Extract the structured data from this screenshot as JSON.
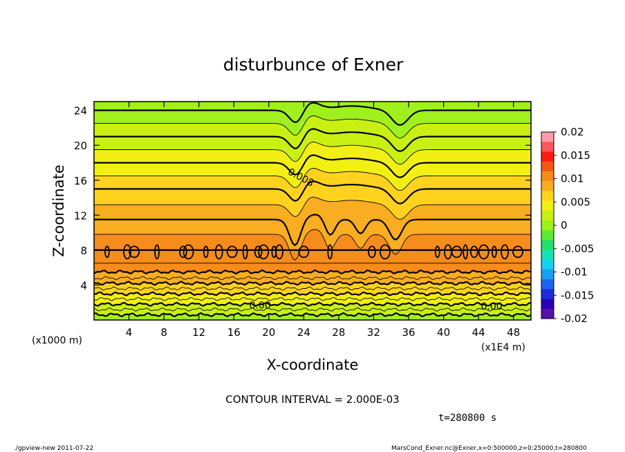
{
  "chart_data": {
    "type": "heatmap",
    "title": "disturbunce of Exner",
    "xlabel": "X-coordinate",
    "ylabel": "Z-coordinate",
    "x_unit_left": "(x1000 m)",
    "x_unit_right": "(x1E4 m)",
    "xlim": [
      0,
      50
    ],
    "ylim": [
      0,
      25
    ],
    "xticks": [
      4,
      8,
      12,
      16,
      20,
      24,
      28,
      32,
      36,
      40,
      44,
      48
    ],
    "yticks": [
      4,
      8,
      12,
      16,
      20,
      24
    ],
    "colorbar": {
      "min": -0.02,
      "max": 0.02,
      "labels": [
        "0.02",
        "0.015",
        "0.01",
        "0.005",
        "0",
        "-0.005",
        "-0.01",
        "-0.015",
        "-0.02"
      ],
      "colors": [
        "#ff9aa6",
        "#ff5560",
        "#ff1c10",
        "#f05a12",
        "#f58c1c",
        "#f9ad20",
        "#ffd21e",
        "#f2ef12",
        "#c9f012",
        "#9ff01c",
        "#5ee83a",
        "#26e06c",
        "#17e0b4",
        "#12d2f0",
        "#1c9ef2",
        "#1e64ee",
        "#1e2cd8",
        "#2a00b4",
        "#5a10a8"
      ]
    },
    "level_bands": [
      {
        "z": 24.0,
        "value": 0.0005
      },
      {
        "z": 22.5,
        "value": 0.0015
      },
      {
        "z": 21.0,
        "value": 0.0025
      },
      {
        "z": 19.5,
        "value": 0.0035
      },
      {
        "z": 18.0,
        "value": 0.0045
      },
      {
        "z": 16.5,
        "value": 0.0055
      },
      {
        "z": 15.0,
        "value": 0.0065
      },
      {
        "z": 13.2,
        "value": 0.0075
      },
      {
        "z": 11.5,
        "value": 0.0085
      },
      {
        "z": 9.8,
        "value": 0.0095
      },
      {
        "z": 8.0,
        "value": 0.0105
      },
      {
        "z": 6.5,
        "value": 0.0095
      },
      {
        "z": 5.5,
        "value": 0.0085
      },
      {
        "z": 4.8,
        "value": 0.0075
      },
      {
        "z": 4.2,
        "value": 0.0065
      },
      {
        "z": 3.6,
        "value": 0.0055
      },
      {
        "z": 3.0,
        "value": 0.0045
      },
      {
        "z": 2.4,
        "value": 0.0035
      },
      {
        "z": 1.8,
        "value": 0.0025
      },
      {
        "z": 1.2,
        "value": 0.0015
      },
      {
        "z": 0.6,
        "value": 0.0005
      }
    ],
    "contour_labels": [
      {
        "text": "0.008",
        "x": 23.5,
        "z": 16.0
      },
      {
        "text": "0.00",
        "x": 19.0,
        "z": 1.3
      },
      {
        "text": "0.00",
        "x": 45.5,
        "z": 1.2
      }
    ],
    "contour_interval": "CONTOUR INTERVAL = 2.000E-03",
    "time_label": "t=280800 s"
  },
  "footer": {
    "left": "./gpview-new   2011-07-22",
    "right": "MarsCond_Exner.nc@Exner,x=0:500000,z=0:25000,t=280800"
  }
}
